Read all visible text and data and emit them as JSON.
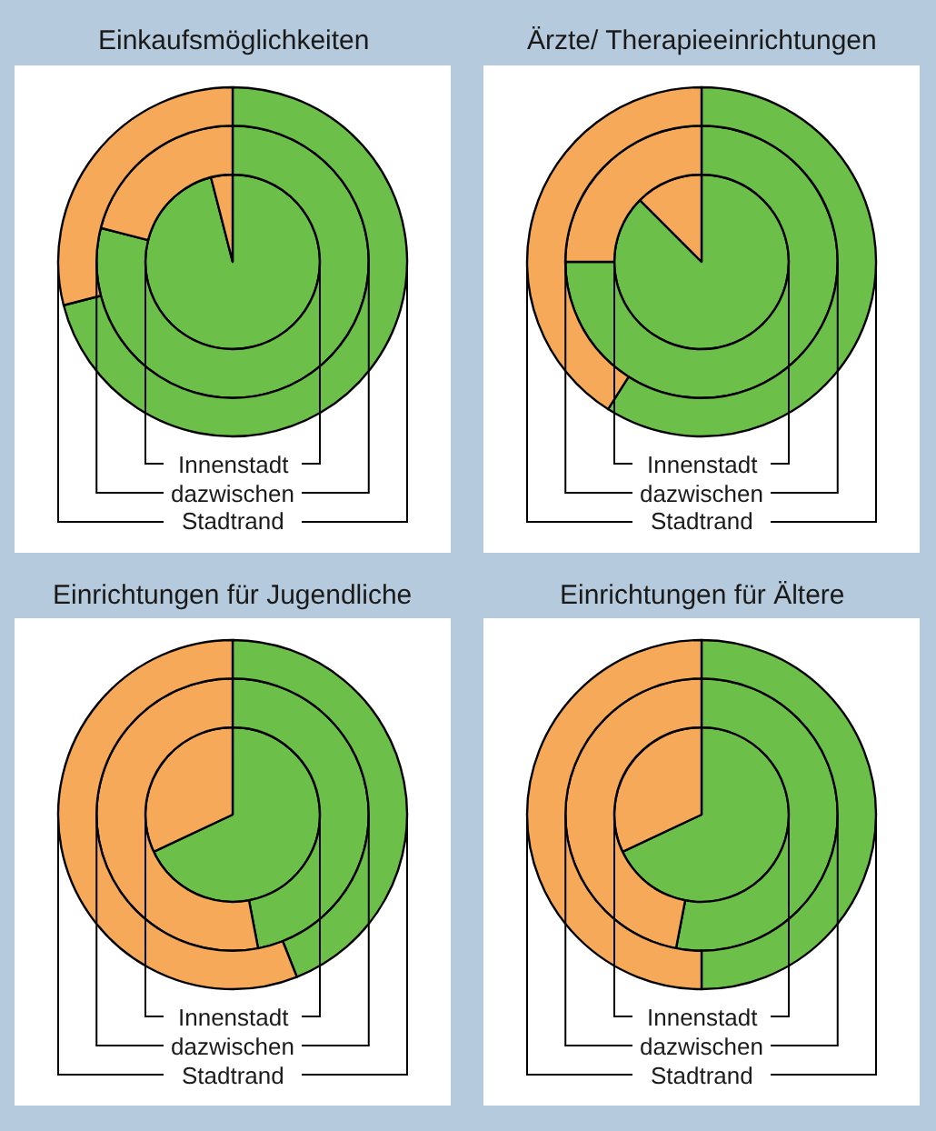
{
  "chart_data": [
    {
      "type": "donut",
      "title": "Einkaufsmöglichkeiten",
      "categories": [
        null,
        null
      ],
      "colors": [
        "#6cc04a",
        "#f7a95a"
      ],
      "series": [
        {
          "name": "Innenstadt",
          "values": [
            96,
            4
          ]
        },
        {
          "name": "dazwischen",
          "values": [
            79,
            21
          ]
        },
        {
          "name": "Stadtrand",
          "values": [
            71,
            29
          ]
        }
      ]
    },
    {
      "type": "donut",
      "title": "Ärzte/ Therapieeinrichtungen",
      "categories": [
        null,
        null
      ],
      "colors": [
        "#6cc04a",
        "#f7a95a"
      ],
      "series": [
        {
          "name": "Innenstadt",
          "values": [
            87.5,
            12.5
          ]
        },
        {
          "name": "dazwischen",
          "values": [
            75,
            25
          ]
        },
        {
          "name": "Stadtrand",
          "values": [
            59,
            41
          ]
        }
      ]
    },
    {
      "type": "donut",
      "title": "Einrichtungen für Jugendliche",
      "categories": [
        null,
        null
      ],
      "colors": [
        "#6cc04a",
        "#f7a95a"
      ],
      "series": [
        {
          "name": "Innenstadt",
          "values": [
            68,
            32
          ]
        },
        {
          "name": "dazwischen",
          "values": [
            47,
            53
          ]
        },
        {
          "name": "Stadtrand",
          "values": [
            44,
            56
          ]
        }
      ]
    },
    {
      "type": "donut",
      "title": "Einrichtungen für Ältere",
      "categories": [
        null,
        null
      ],
      "colors": [
        "#6cc04a",
        "#f7a95a"
      ],
      "series": [
        {
          "name": "Innenstadt",
          "values": [
            68,
            32
          ]
        },
        {
          "name": "dazwischen",
          "values": [
            53,
            47
          ]
        },
        {
          "name": "Stadtrand",
          "values": [
            50,
            50
          ]
        }
      ]
    }
  ]
}
